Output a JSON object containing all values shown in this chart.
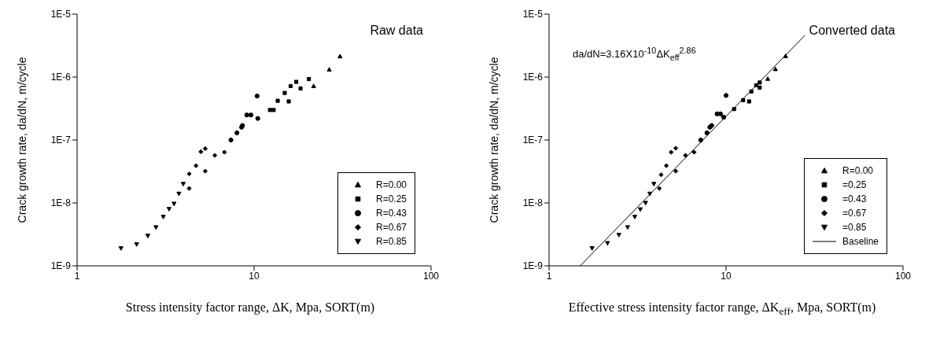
{
  "chart_data": [
    {
      "type": "scatter",
      "annotations": [
        "Raw data"
      ],
      "xlabel": "Stress intensity factor range, ΔK, Mpa, SORT(m)",
      "ylabel": "Crack growth rate, da/dN, m/cycle",
      "log": "xy",
      "xlim": [
        1,
        100
      ],
      "xticks": [
        1,
        10,
        100
      ],
      "ylim": [
        1e-09,
        1e-05
      ],
      "yticks": [
        {
          "value": 1e-09,
          "label": "1E-9"
        },
        {
          "value": 1e-08,
          "label": "1E-8"
        },
        {
          "value": 1e-07,
          "label": "1E-7"
        },
        {
          "value": 1e-06,
          "label": "1E-6"
        },
        {
          "value": 1e-05,
          "label": "1E-5"
        }
      ],
      "legend": "bottom right",
      "series": [
        {
          "name": "R=0.00",
          "color": "#000000",
          "marker": "triangle",
          "x": [
            21.7,
            26.6,
            30.6
          ],
          "values": [
            7.2e-07,
            1.32e-06,
            2.14e-06
          ]
        },
        {
          "name": "R=0.25",
          "color": "#000000",
          "marker": "square",
          "x": [
            12.3,
            12.9,
            13.6,
            14.9,
            15.7,
            16.1,
            17.3,
            18.3,
            20.4
          ],
          "values": [
            3e-07,
            3e-07,
            4.2e-07,
            5.6e-07,
            4.1e-07,
            7.2e-07,
            8.4e-07,
            6.6e-07,
            9.3e-07
          ]
        },
        {
          "name": "R=0.43",
          "color": "#000000",
          "marker": "circle",
          "x": [
            7.4,
            8.0,
            8.5,
            8.6,
            9.1,
            9.6,
            10.4,
            10.5
          ],
          "values": [
            1e-07,
            1.3e-07,
            1.6e-07,
            1.7e-07,
            2.5e-07,
            2.5e-07,
            5e-07,
            2.2e-07
          ]
        },
        {
          "name": "R=0.67",
          "color": "#000000",
          "marker": "diamond",
          "x": [
            4.3,
            4.3,
            4.7,
            5.0,
            5.3,
            5.3,
            6.0,
            6.8
          ],
          "values": [
            1.7e-08,
            2.9e-08,
            3.9e-08,
            6.5e-08,
            7.3e-08,
            3.2e-08,
            5.7e-08,
            6.4e-08
          ]
        },
        {
          "name": "R=0.85",
          "color": "#000000",
          "marker": "triangle-down",
          "x": [
            1.77,
            2.17,
            2.51,
            2.79,
            3.07,
            3.31,
            3.53,
            3.76,
            3.98
          ],
          "values": [
            1.9e-09,
            2.2e-09,
            3e-09,
            4.1e-09,
            6e-09,
            8e-09,
            9.7e-09,
            1.4e-08,
            2e-08
          ]
        }
      ]
    },
    {
      "type": "scatter",
      "annotations": [
        "Converted data",
        "da/dN=3.16X10$^{-10}$ΔK$_{eff}$$^{2.86}$"
      ],
      "xlabel": "Effective stress intensity factor range, ΔK$_{eff}$, Mpa, SORT(m)",
      "ylabel": "Crack growth rate, da/dN, m/cycle",
      "log": "xy",
      "xlim": [
        1,
        100
      ],
      "xticks": [
        1,
        10,
        100
      ],
      "ylim": [
        1e-09,
        1e-05
      ],
      "yticks": [
        {
          "value": 1e-09,
          "label": "1E-9"
        },
        {
          "value": 1e-08,
          "label": "1E-8"
        },
        {
          "value": 1e-07,
          "label": "1E-7"
        },
        {
          "value": 1e-06,
          "label": "1E-6"
        },
        {
          "value": 1e-05,
          "label": "1E-5"
        }
      ],
      "legend": "bottom right",
      "series": [
        {
          "name": "R=0.00",
          "color": "#000000",
          "marker": "triangle",
          "x": [
            17.2,
            19.0,
            21.7
          ],
          "values": [
            9.4e-07,
            1.34e-06,
            2.16e-06
          ]
        },
        {
          "name": "=0.25",
          "color": "#000000",
          "marker": "square",
          "x": [
            11.1,
            12.5,
            13.5,
            13.9,
            14.8,
            15.5,
            15.5
          ],
          "values": [
            3.1e-07,
            4.3e-07,
            4.1e-07,
            5.9e-07,
            7.4e-07,
            8.2e-07,
            6.8e-07
          ]
        },
        {
          "name": "=0.43",
          "color": "#000000",
          "marker": "circle",
          "x": [
            7.2,
            7.8,
            8.1,
            8.3,
            8.9,
            9.3,
            10.0,
            9.7
          ],
          "values": [
            1e-07,
            1.3e-07,
            1.6e-07,
            1.7e-07,
            2.6e-07,
            2.6e-07,
            5.1e-07,
            2.3e-07
          ]
        },
        {
          "name": "=0.67",
          "color": "#000000",
          "marker": "diamond",
          "x": [
            4.2,
            4.3,
            4.6,
            4.9,
            5.2,
            5.2,
            5.9,
            6.6
          ],
          "values": [
            1.7e-08,
            2.8e-08,
            3.9e-08,
            6.4e-08,
            7.4e-08,
            3.2e-08,
            5.7e-08,
            6.4e-08
          ]
        },
        {
          "name": "=0.85",
          "color": "#000000",
          "marker": "triangle-down",
          "x": [
            1.75,
            2.14,
            2.48,
            2.78,
            3.05,
            3.28,
            3.51,
            3.71,
            3.91
          ],
          "values": [
            1.9e-09,
            2.3e-09,
            3.1e-09,
            4.1e-09,
            6e-09,
            7.9e-09,
            1e-08,
            1.4e-08,
            2e-08
          ]
        },
        {
          "name": "Baseline",
          "type": "line",
          "color": "#000000",
          "marker": "none",
          "x": [
            1.5,
            27.9
          ],
          "values": [
            1e-09,
            4.6e-06
          ]
        }
      ]
    }
  ]
}
